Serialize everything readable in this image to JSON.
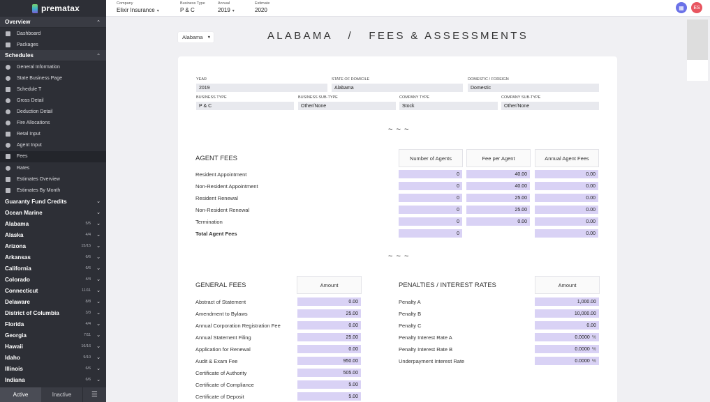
{
  "app": {
    "name": "prematax"
  },
  "topbar": {
    "fields": [
      {
        "label": "Company",
        "value": "Elixir Insurance",
        "caret": true
      },
      {
        "label": "Business Type",
        "value": "P & C",
        "caret": false
      },
      {
        "label": "Annual",
        "value": "2019",
        "caret": true
      },
      {
        "label": "Estimate",
        "value": "2020",
        "caret": false
      }
    ],
    "user_initials": "ES"
  },
  "sidebar": {
    "overview": {
      "label": "Overview",
      "items": [
        {
          "label": "Dashboard",
          "icon": "grid-icon"
        },
        {
          "label": "Packages",
          "icon": "envelope-icon"
        }
      ]
    },
    "schedules": {
      "label": "Schedules",
      "items": [
        {
          "label": "General Information",
          "icon": "info-icon"
        },
        {
          "label": "State Business Page",
          "icon": "globe-icon"
        },
        {
          "label": "Schedule T",
          "icon": "table-icon"
        },
        {
          "label": "Gross Detail",
          "icon": "money-icon"
        },
        {
          "label": "Deduction Detail",
          "icon": "minus-icon"
        },
        {
          "label": "Fire Allocations",
          "icon": "fire-icon"
        },
        {
          "label": "Retal Input",
          "icon": "document-icon"
        },
        {
          "label": "Agent Input",
          "icon": "user-icon"
        },
        {
          "label": "Fees",
          "icon": "fees-icon",
          "active": true
        },
        {
          "label": "Rates",
          "icon": "rates-icon"
        },
        {
          "label": "Estimates Overview",
          "icon": "chart-icon"
        },
        {
          "label": "Estimates By Month",
          "icon": "calendar-icon"
        }
      ]
    },
    "groups": [
      {
        "label": "Guaranty Fund Credits"
      },
      {
        "label": "Ocean Marine"
      }
    ],
    "states": [
      {
        "name": "Alabama",
        "count": "5/5"
      },
      {
        "name": "Alaska",
        "count": "4/4"
      },
      {
        "name": "Arizona",
        "count": "15/15"
      },
      {
        "name": "Arkansas",
        "count": "6/6"
      },
      {
        "name": "California",
        "count": "6/6"
      },
      {
        "name": "Colorado",
        "count": "4/4"
      },
      {
        "name": "Connecticut",
        "count": "11/11"
      },
      {
        "name": "Delaware",
        "count": "8/8"
      },
      {
        "name": "District of Columbia",
        "count": "3/3"
      },
      {
        "name": "Florida",
        "count": "4/4"
      },
      {
        "name": "Georgia",
        "count": "7/11"
      },
      {
        "name": "Hawaii",
        "count": "16/16"
      },
      {
        "name": "Idaho",
        "count": "9/10"
      },
      {
        "name": "Illinois",
        "count": "6/6"
      },
      {
        "name": "Indiana",
        "count": "6/6"
      }
    ],
    "footer": {
      "active": "Active",
      "inactive": "Inactive"
    }
  },
  "main": {
    "state_select": "Alabama",
    "title": "ALABAMA   /   FEES & ASSESSMENTS",
    "info": {
      "year_label": "YEAR",
      "year": "2019",
      "domicile_label": "STATE OF DOMICILE",
      "domicile": "Alabama",
      "domestic_label": "DOMESTIC / FOREIGN",
      "domestic": "Domestic",
      "btype_label": "BUSINESS TYPE",
      "btype": "P & C",
      "bsub_label": "BUSINESS SUB-TYPE",
      "bsub": "Other/None",
      "ctype_label": "COMPANY TYPE",
      "ctype": "Stock",
      "csub_label": "COMPANY SUB-TYPE",
      "csub": "Other/None"
    },
    "separator": "~ ~ ~",
    "agent_fees": {
      "title": "AGENT FEES",
      "headers": [
        "Number of Agents",
        "Fee per Agent",
        "Annual Agent Fees"
      ],
      "rows": [
        {
          "label": "Resident Appointment",
          "values": [
            "0",
            "40.00",
            "0.00"
          ]
        },
        {
          "label": "Non-Resident Appointment",
          "values": [
            "0",
            "40.00",
            "0.00"
          ]
        },
        {
          "label": "Resident Renewal",
          "values": [
            "0",
            "25.00",
            "0.00"
          ]
        },
        {
          "label": "Non-Resident Renewal",
          "values": [
            "0",
            "25.00",
            "0.00"
          ]
        },
        {
          "label": "Termination",
          "values": [
            "0",
            "0.00",
            "0.00"
          ]
        }
      ],
      "total": {
        "label": "Total Agent Fees",
        "agents": "0",
        "fees": "0.00"
      }
    },
    "general_fees": {
      "title": "GENERAL FEES",
      "header": "Amount",
      "rows": [
        {
          "label": "Abstract of Statement",
          "value": "0.00"
        },
        {
          "label": "Amendment to Bylaws",
          "value": "25.00"
        },
        {
          "label": "Annual Corporation Registration Fee",
          "value": "0.00"
        },
        {
          "label": "Annual Statement Filing",
          "value": "25.00"
        },
        {
          "label": "Application for Renewal",
          "value": "0.00"
        },
        {
          "label": "Audit & Exam Fee",
          "value": "950.00"
        },
        {
          "label": "Certificate of Authority",
          "value": "505.00"
        },
        {
          "label": "Certificate of Compliance",
          "value": "5.00"
        },
        {
          "label": "Certificate of Deposit",
          "value": "5.00"
        }
      ]
    },
    "penalties": {
      "title": "PENALTIES  /  INTEREST RATES",
      "header": "Amount",
      "rows": [
        {
          "label": "Penalty A",
          "value": "1,000.00",
          "pct": ""
        },
        {
          "label": "Penalty B",
          "value": "10,000.00",
          "pct": ""
        },
        {
          "label": "Penalty C",
          "value": "0.00",
          "pct": ""
        },
        {
          "label": "Penalty Interest Rate A",
          "value": "0.0000",
          "pct": "%"
        },
        {
          "label": "Penalty Interest Rate B",
          "value": "0.0000",
          "pct": "%"
        },
        {
          "label": "Underpayment Interest Rate",
          "value": "0.0000",
          "pct": "%"
        }
      ]
    }
  }
}
